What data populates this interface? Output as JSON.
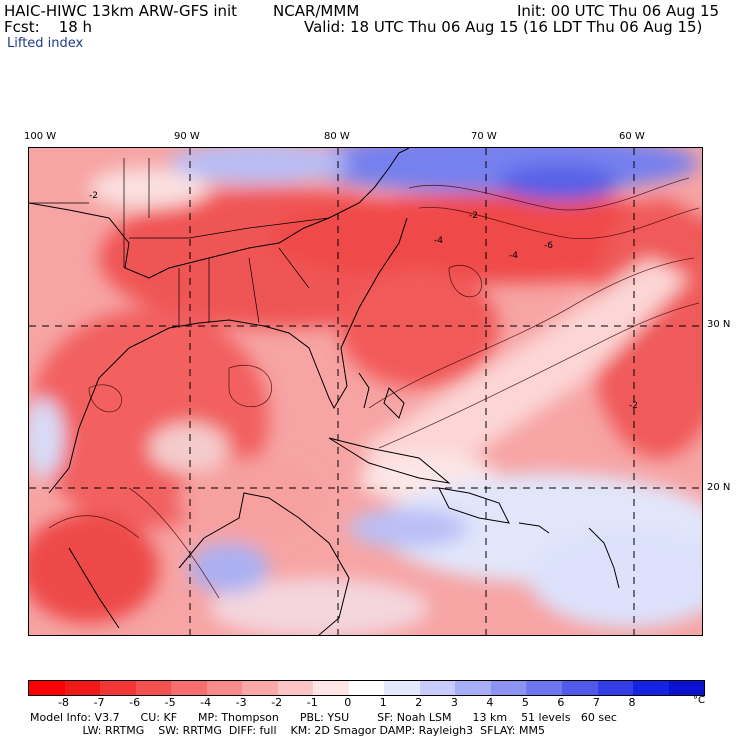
{
  "header": {
    "model": "HAIC-HIWC 13km ARW-GFS init",
    "agency": "NCAR/MMM",
    "init": "Init: 00 UTC Thu 06 Aug 15",
    "fcst": "Fcst:    18 h",
    "valid": "Valid: 18 UTC Thu 06 Aug 15 (16 LDT Thu 06 Aug 15)",
    "field": "Lifted index"
  },
  "map": {
    "lon_labels": [
      "100 W",
      "90 W",
      "80 W",
      "70 W",
      "60 W"
    ],
    "lat_labels": [
      "30 N",
      "20 N"
    ],
    "contour_labels": [
      "-4",
      "-2",
      "-4",
      "-6",
      "-2",
      "-2"
    ]
  },
  "colorbar": {
    "unit": "°C",
    "ticks": [
      "-8",
      "-7",
      "-6",
      "-5",
      "-4",
      "-3",
      "-2",
      "-1",
      "0",
      "1",
      "2",
      "3",
      "4",
      "5",
      "6",
      "7",
      "8"
    ],
    "colors": [
      "#ff0000",
      "#f01818",
      "#f23636",
      "#f45252",
      "#f66e6e",
      "#f98b8b",
      "#fba8a8",
      "#fdc5c5",
      "#ffe5e5",
      "#ffffff",
      "#e5e8ff",
      "#c8ccfb",
      "#a9aff7",
      "#8b93f3",
      "#6f77ee",
      "#5059ea",
      "#333de6",
      "#1522e2",
      "#0a12d0"
    ]
  },
  "footer": {
    "line1": "Model Info: V3.7      CU: KF      MP: Thompson      PBL: YSU        SF: Noah LSM      13 km    51 levels   60 sec",
    "line2": "               LW: RRTMG    SW: RRTMG  DIFF: full    KM: 2D Smagor DAMP: Rayleigh3  SFLAY: MM5"
  }
}
